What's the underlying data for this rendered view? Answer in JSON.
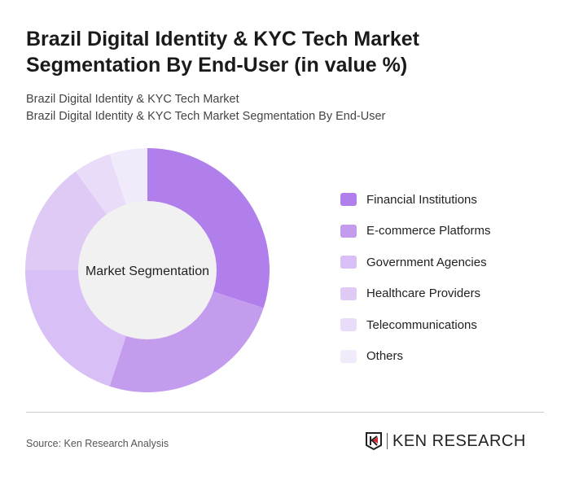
{
  "title": "Brazil Digital Identity & KYC Tech Market Segmentation By End-User (in value %)",
  "subtitle1": "Brazil Digital Identity & KYC Tech Market",
  "subtitle2": "Brazil Digital Identity & KYC Tech Market Segmentation By End-User",
  "source": "Source: Ken Research Analysis",
  "logo_text": "KEN RESEARCH",
  "chart_data": {
    "type": "pie",
    "donut": true,
    "center_label": "Market Segmentation",
    "categories": [
      "Financial Institutions",
      "E-commerce Platforms",
      "Government Agencies",
      "Healthcare Providers",
      "Telecommunications",
      "Others"
    ],
    "values": [
      30,
      25,
      20,
      15,
      5,
      5
    ],
    "colors": [
      "#b07fec",
      "#c49cee",
      "#d8bff5",
      "#dfc9f5",
      "#e8dcf8",
      "#f1eafb"
    ],
    "legend_position": "right"
  }
}
